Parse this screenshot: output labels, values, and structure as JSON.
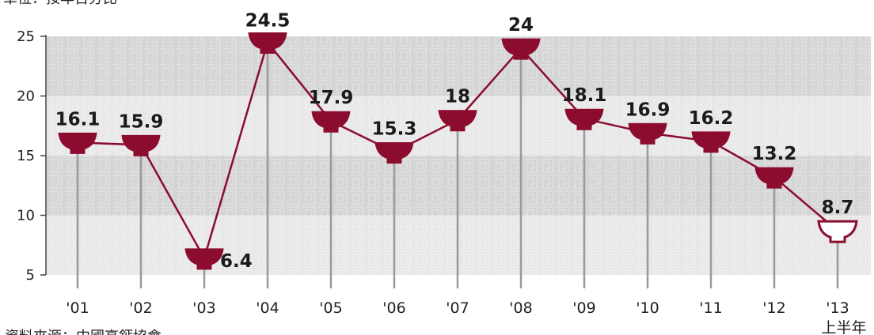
{
  "unit_note": "單位：按年百分比",
  "source_note": "資料來源：中國高鈣協會",
  "colors": {
    "series": "#8b0c2e",
    "band_dark": "#d5d5d5",
    "band_light": "#e8e8e8",
    "stem": "#9a9a9a",
    "axis": "#444444"
  },
  "chart_data": {
    "type": "line",
    "x": [
      "'01",
      "'02",
      "'03",
      "'04",
      "'05",
      "'06",
      "'07",
      "'08",
      "'09",
      "'10",
      "'11",
      "'12",
      "'13"
    ],
    "x_sublabels": [
      "",
      "",
      "",
      "",
      "",
      "",
      "",
      "",
      "",
      "",
      "",
      "",
      "上半年"
    ],
    "series": [
      {
        "values": [
          16.1,
          15.9,
          6.4,
          24.5,
          17.9,
          15.3,
          18,
          24,
          18.1,
          16.9,
          16.2,
          13.2,
          8.7
        ],
        "labels": [
          "16.1",
          "15.9",
          "6.4",
          "24.5",
          "17.9",
          "15.3",
          "18",
          "24",
          "18.1",
          "16.9",
          "16.2",
          "13.2",
          "8.7"
        ]
      }
    ],
    "y_ticks": [
      5,
      10,
      15,
      20,
      25
    ],
    "ylim": [
      5,
      25
    ],
    "grid": false
  }
}
